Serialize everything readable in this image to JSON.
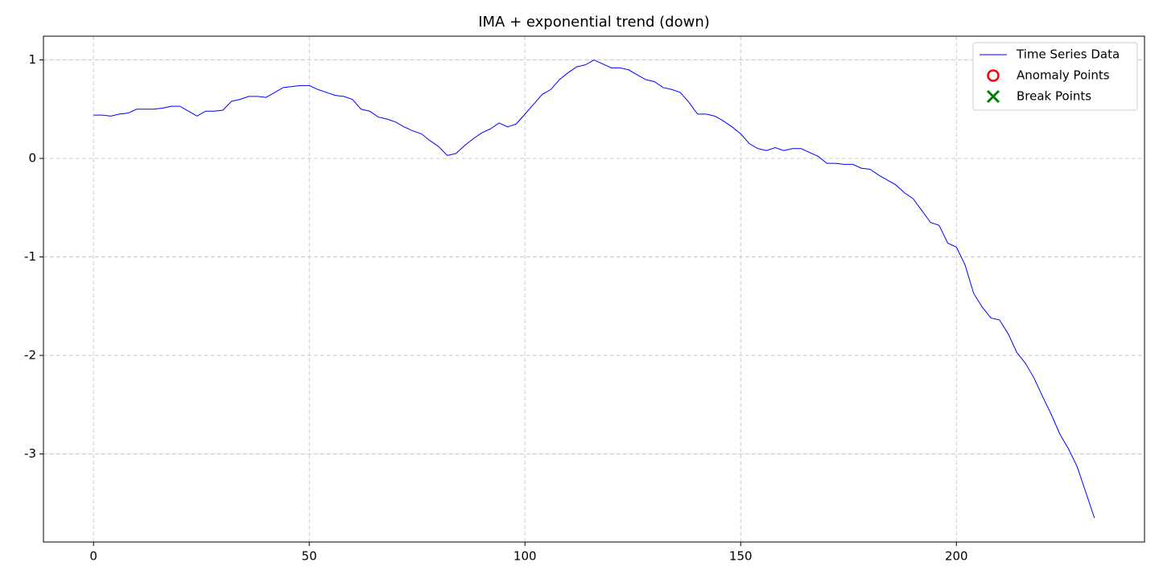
{
  "chart_data": {
    "type": "line",
    "title": "IMA + exponential trend (down)",
    "xlim": [
      -11.6,
      243.6
    ],
    "ylim": [
      -3.894,
      1.241
    ],
    "xticks": [
      0,
      50,
      100,
      150,
      200
    ],
    "yticks": [
      -3,
      -2,
      -1,
      0,
      1
    ],
    "grid": true,
    "legend": "upper right",
    "series": [
      {
        "name": "Time Series Data",
        "color": "#0000ff",
        "marker": "line",
        "x": [
          0,
          2,
          4,
          6,
          8,
          10,
          12,
          14,
          16,
          18,
          20,
          22,
          24,
          26,
          28,
          30,
          32,
          34,
          36,
          38,
          40,
          42,
          44,
          46,
          48,
          50,
          52,
          54,
          56,
          58,
          60,
          62,
          64,
          66,
          68,
          70,
          72,
          74,
          76,
          78,
          80,
          82,
          84,
          86,
          88,
          90,
          92,
          94,
          96,
          98,
          100,
          102,
          104,
          106,
          108,
          110,
          112,
          114,
          116,
          118,
          120,
          122,
          124,
          126,
          128,
          130,
          132,
          134,
          136,
          138,
          140,
          142,
          144,
          146,
          148,
          150,
          152,
          154,
          156,
          158,
          160,
          162,
          164,
          166,
          168,
          170,
          172,
          174,
          176,
          178,
          180,
          182,
          184,
          186,
          188,
          190,
          192,
          194,
          196,
          198,
          200,
          202,
          204,
          206,
          208,
          210,
          212,
          214,
          216,
          218,
          220,
          222,
          224,
          226,
          228,
          230,
          232
        ],
        "values": [
          0.44,
          0.44,
          0.43,
          0.45,
          0.46,
          0.5,
          0.5,
          0.5,
          0.51,
          0.53,
          0.53,
          0.48,
          0.43,
          0.48,
          0.48,
          0.49,
          0.58,
          0.6,
          0.63,
          0.63,
          0.62,
          0.67,
          0.72,
          0.73,
          0.74,
          0.74,
          0.7,
          0.67,
          0.64,
          0.63,
          0.6,
          0.5,
          0.48,
          0.42,
          0.4,
          0.37,
          0.32,
          0.28,
          0.25,
          0.18,
          0.12,
          0.03,
          0.05,
          0.13,
          0.2,
          0.26,
          0.3,
          0.36,
          0.32,
          0.35,
          0.45,
          0.55,
          0.65,
          0.7,
          0.8,
          0.87,
          0.93,
          0.95,
          1.0,
          0.96,
          0.92,
          0.92,
          0.9,
          0.85,
          0.8,
          0.78,
          0.72,
          0.7,
          0.67,
          0.57,
          0.45,
          0.45,
          0.43,
          0.38,
          0.32,
          0.25,
          0.15,
          0.1,
          0.08,
          0.11,
          0.08,
          0.1,
          0.1,
          0.06,
          0.02,
          -0.05,
          -0.05,
          -0.06,
          -0.06,
          -0.1,
          -0.11,
          -0.17,
          -0.22,
          -0.27,
          -0.35,
          -0.41,
          -0.53,
          -0.65,
          -0.68,
          -0.86,
          -0.9,
          -1.08,
          -1.37,
          -1.51,
          -1.62,
          -1.64,
          -1.78,
          -1.97,
          -2.08,
          -2.23,
          -2.42,
          -2.6,
          -2.8,
          -2.95,
          -3.13,
          -3.39,
          -3.65
        ]
      },
      {
        "name": "Anomaly Points",
        "color": "#ff0000",
        "marker": "circle",
        "x": [],
        "values": []
      },
      {
        "name": "Break Points",
        "color": "#008000",
        "marker": "x",
        "x": [],
        "values": []
      }
    ]
  }
}
